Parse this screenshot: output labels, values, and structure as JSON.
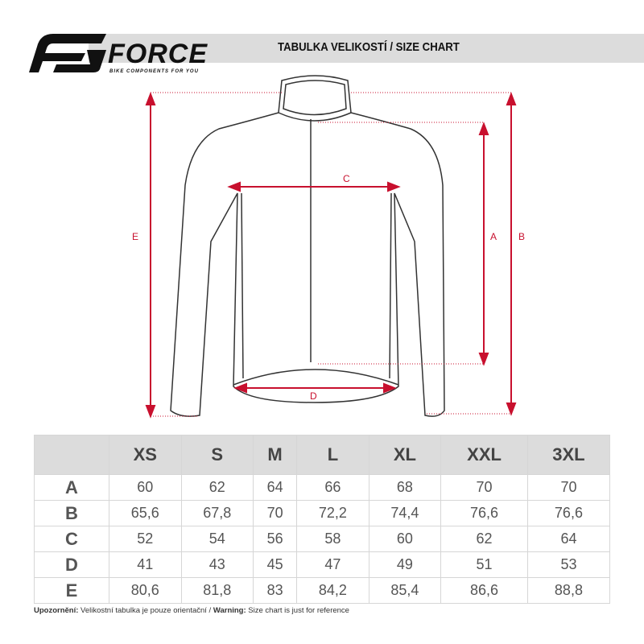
{
  "header": {
    "brand": "FORCE",
    "tagline": "BIKE COMPONENTS FOR YOU",
    "title": "TABULKA VELIKOSTÍ / SIZE CHART"
  },
  "diagram": {
    "labels": {
      "A": "A",
      "B": "B",
      "C": "C",
      "D": "D",
      "E": "E"
    },
    "arrow_color": "#c8102e"
  },
  "table": {
    "sizes": [
      "XS",
      "S",
      "M",
      "L",
      "XL",
      "XXL",
      "3XL"
    ],
    "rows": [
      {
        "label": "A",
        "values": [
          "60",
          "62",
          "64",
          "66",
          "68",
          "70",
          "70"
        ]
      },
      {
        "label": "B",
        "values": [
          "65,6",
          "67,8",
          "70",
          "72,2",
          "74,4",
          "76,6",
          "76,6"
        ]
      },
      {
        "label": "C",
        "values": [
          "52",
          "54",
          "56",
          "58",
          "60",
          "62",
          "64"
        ]
      },
      {
        "label": "D",
        "values": [
          "41",
          "43",
          "45",
          "47",
          "49",
          "51",
          "53"
        ]
      },
      {
        "label": "E",
        "values": [
          "80,6",
          "81,8",
          "83",
          "84,2",
          "85,4",
          "86,6",
          "88,8"
        ]
      }
    ]
  },
  "note": {
    "cz_label": "Upozornění:",
    "cz_text": " Velikostní tabulka je pouze orientační / ",
    "en_label": "Warning:",
    "en_text": " Size chart is just for reference"
  }
}
